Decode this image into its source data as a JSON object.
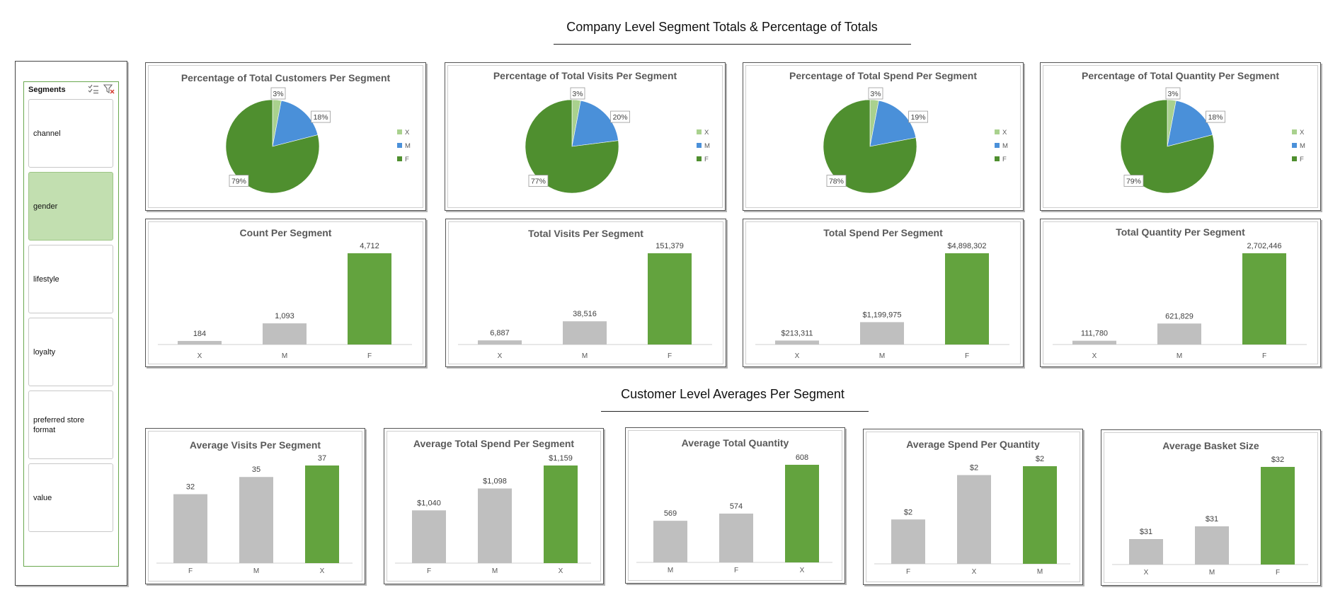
{
  "headings": {
    "company": "Company Level Segment Totals & Percentage of Totals",
    "customer": "Customer Level Averages Per Segment"
  },
  "slicer": {
    "title": "Segments",
    "items": [
      "channel",
      "gender",
      "lifestyle",
      "loyalty",
      "preferred store format",
      "value"
    ],
    "selected": "gender",
    "icons": [
      "multi-select-icon",
      "clear-filter-icon"
    ]
  },
  "colors": {
    "x": "#a9d18e",
    "m": "#4a90d9",
    "f": "#4f8f2f",
    "bar_gray": "#bfbfbf",
    "bar_green": "#63a33e"
  },
  "chart_data": [
    {
      "type": "pie",
      "title": "Percentage of Total Customers Per Segment",
      "categories": [
        "X",
        "M",
        "F"
      ],
      "values": [
        3,
        18,
        79
      ],
      "labels": [
        "3%",
        "18%",
        "79%"
      ],
      "legend": "right"
    },
    {
      "type": "pie",
      "title": "Percentage of Total Visits Per Segment",
      "categories": [
        "X",
        "M",
        "F"
      ],
      "values": [
        3,
        20,
        77
      ],
      "labels": [
        "3%",
        "20%",
        "77%"
      ],
      "legend": "right"
    },
    {
      "type": "pie",
      "title": "Percentage of Total Spend Per Segment",
      "categories": [
        "X",
        "M",
        "F"
      ],
      "values": [
        3,
        19,
        78
      ],
      "labels": [
        "3%",
        "19%",
        "78%"
      ],
      "legend": "right"
    },
    {
      "type": "pie",
      "title": "Percentage of Total Quantity Per Segment",
      "categories": [
        "X",
        "M",
        "F"
      ],
      "values": [
        3,
        18,
        79
      ],
      "labels": [
        "3%",
        "18%",
        "79%"
      ],
      "legend": "right"
    },
    {
      "type": "bar",
      "title": "Count Per Segment",
      "categories": [
        "X",
        "M",
        "F"
      ],
      "values": [
        184,
        1093,
        4712
      ],
      "labels": [
        "184",
        "1,093",
        "4,712"
      ],
      "highlight": "F"
    },
    {
      "type": "bar",
      "title": "Total Visits Per Segment",
      "categories": [
        "X",
        "M",
        "F"
      ],
      "values": [
        6887,
        38516,
        151379
      ],
      "labels": [
        "6,887",
        "38,516",
        "151,379"
      ],
      "highlight": "F"
    },
    {
      "type": "bar",
      "title": "Total Spend Per Segment",
      "categories": [
        "X",
        "M",
        "F"
      ],
      "values": [
        213311,
        1199975,
        4898302
      ],
      "labels": [
        "$213,311",
        "$1,199,975",
        "$4,898,302"
      ],
      "highlight": "F"
    },
    {
      "type": "bar",
      "title": "Total Quantity Per Segment",
      "categories": [
        "X",
        "M",
        "F"
      ],
      "values": [
        111780,
        621829,
        2702446
      ],
      "labels": [
        "111,780",
        "621,829",
        "2,702,446"
      ],
      "highlight": "F"
    },
    {
      "type": "bar",
      "title": "Average Visits Per Segment",
      "categories": [
        "F",
        "M",
        "X"
      ],
      "values": [
        32,
        35,
        37
      ],
      "labels": [
        "32",
        "35",
        "37"
      ],
      "highlight": "X",
      "ylim": [
        20,
        37
      ]
    },
    {
      "type": "bar",
      "title": "Average Total Spend Per Segment",
      "categories": [
        "F",
        "M",
        "X"
      ],
      "values": [
        1040,
        1098,
        1159
      ],
      "labels": [
        "$1,040",
        "$1,098",
        "$1,159"
      ],
      "highlight": "X",
      "ylim": [
        900,
        1159
      ]
    },
    {
      "type": "bar",
      "title": "Average Total Quantity",
      "categories": [
        "M",
        "F",
        "X"
      ],
      "values": [
        569,
        574,
        608
      ],
      "labels": [
        "569",
        "574",
        "608"
      ],
      "highlight": "X",
      "ylim": [
        540,
        608
      ]
    },
    {
      "type": "bar",
      "title": "Average Spend Per Quantity",
      "categories": [
        "F",
        "X",
        "M"
      ],
      "values": [
        1.8,
        2.0,
        2.04
      ],
      "labels": [
        "$2",
        "$2",
        "$2"
      ],
      "highlight": "M",
      "ylim": [
        1.6,
        2.04
      ]
    },
    {
      "type": "bar",
      "title": "Average Basket Size",
      "categories": [
        "X",
        "M",
        "F"
      ],
      "values": [
        30.6,
        30.9,
        32.3
      ],
      "labels": [
        "$31",
        "$31",
        "$32"
      ],
      "highlight": "F",
      "ylim": [
        30.0,
        32.3
      ]
    }
  ]
}
